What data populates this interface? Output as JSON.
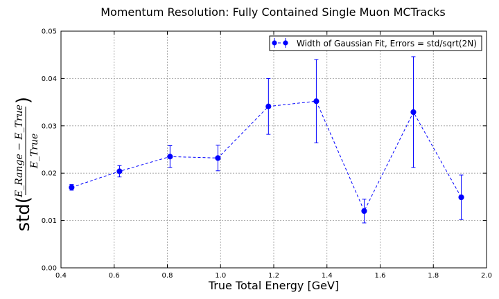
{
  "chart_data": {
    "type": "line",
    "title": "Momentum Resolution: Fully Contained Single Muon MCTracks",
    "xlabel": "True Total Energy [GeV]",
    "ylabel": {
      "prefix": "std(",
      "numerator": "E_Range − E_True",
      "denominator": "E_True",
      "suffix": ")"
    },
    "xlim": [
      0.4,
      2.0
    ],
    "ylim": [
      0.0,
      0.05
    ],
    "x_ticks": [
      0.4,
      0.6,
      0.8,
      1.0,
      1.2,
      1.4,
      1.6,
      1.8,
      2.0
    ],
    "x_tick_labels": [
      "0.4",
      "0.6",
      "0.8",
      "1.0",
      "1.2",
      "1.4",
      "1.6",
      "1.8",
      "2.0"
    ],
    "y_ticks": [
      0.0,
      0.01,
      0.02,
      0.03,
      0.04,
      0.05
    ],
    "y_tick_labels": [
      "0.00",
      "0.01",
      "0.02",
      "0.03",
      "0.04",
      "0.05"
    ],
    "grid": true,
    "legend_position": "top-right",
    "series": [
      {
        "name": "Width of Gaussian Fit, Errors = std/sqrt(2N)",
        "color": "#0000ff",
        "line_style": "dashed",
        "marker": "circle",
        "x": [
          0.44,
          0.62,
          0.81,
          0.99,
          1.18,
          1.36,
          1.54,
          1.725,
          1.905
        ],
        "y": [
          0.017,
          0.0204,
          0.0235,
          0.0232,
          0.0341,
          0.0352,
          0.012,
          0.0329,
          0.0149
        ],
        "error": [
          0.0006,
          0.0012,
          0.0023,
          0.0027,
          0.0059,
          0.0088,
          0.0025,
          0.0117,
          0.0047
        ]
      }
    ]
  }
}
